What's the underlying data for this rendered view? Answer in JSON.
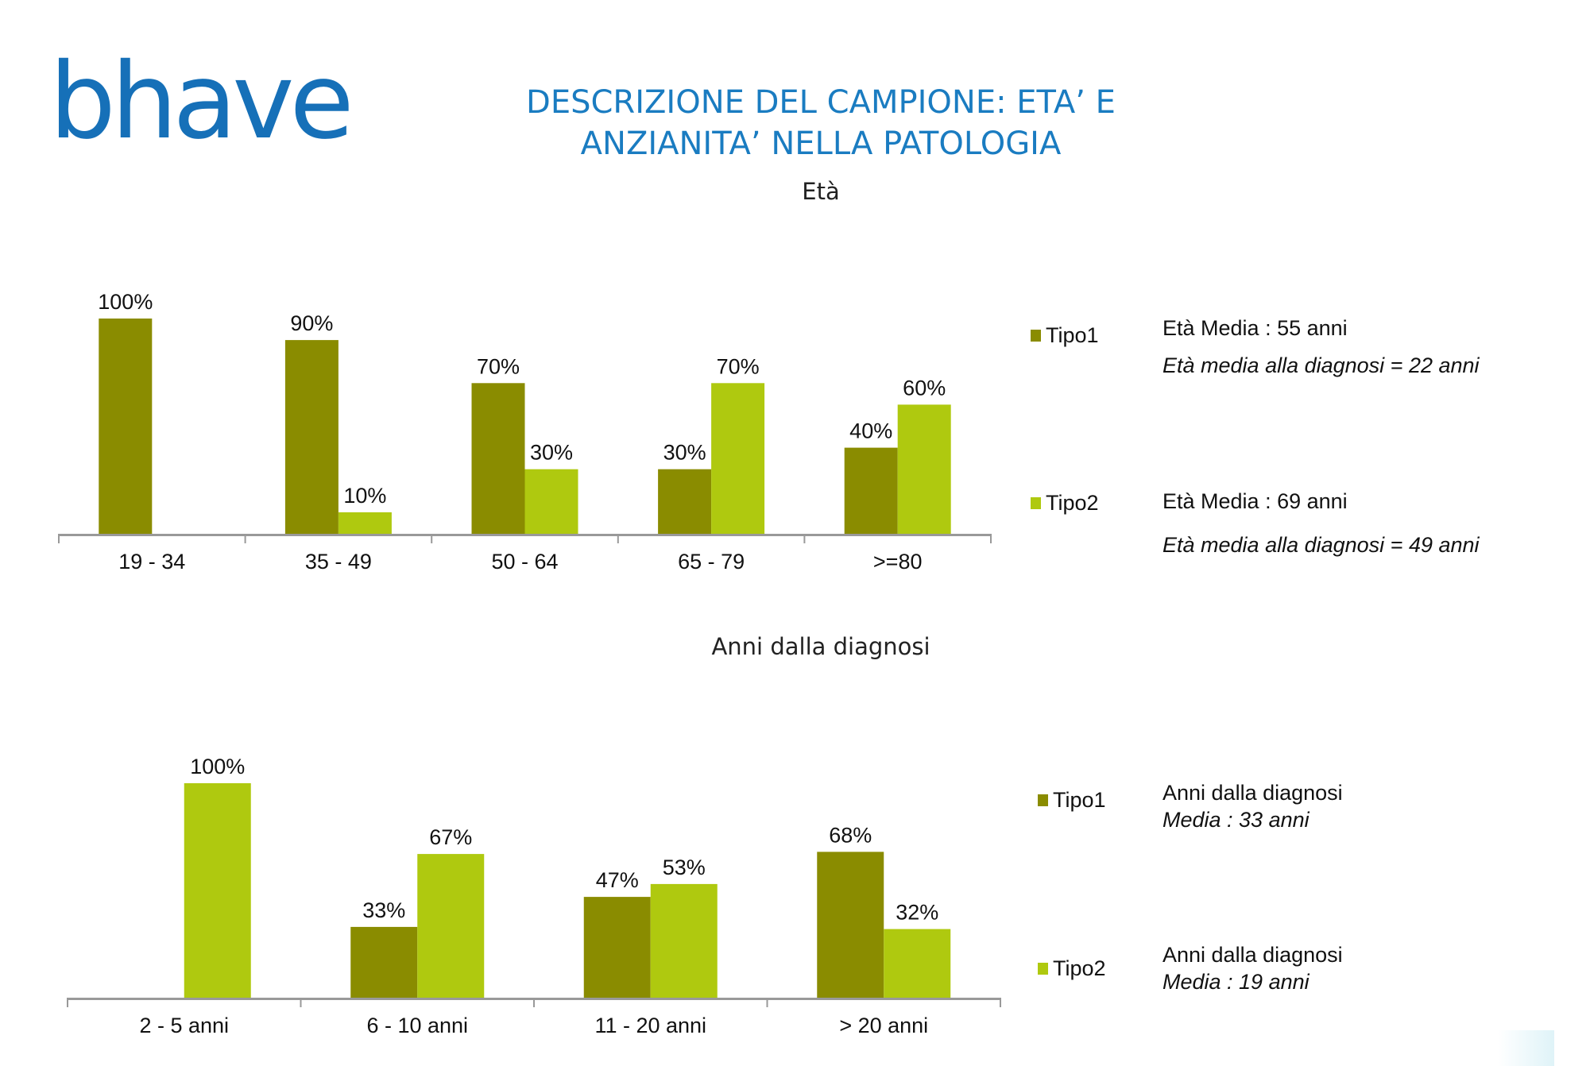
{
  "logo": "bhave",
  "title_line1": "DESCRIZIONE DEL CAMPIONE: ETA’ E",
  "title_line2": "ANZIANITA’ NELLA PATOLOGIA",
  "colors": {
    "tipo1": "#8a8c00",
    "tipo2": "#afc90f",
    "title": "#1a7cc1"
  },
  "chart_data": [
    {
      "type": "bar",
      "title": "Età",
      "categories": [
        "19 - 34",
        "35 - 49",
        "50 - 64",
        "65 - 79",
        ">=80"
      ],
      "series": [
        {
          "name": "Tipo1",
          "values": [
            100,
            90,
            70,
            30,
            40
          ]
        },
        {
          "name": "Tipo2",
          "values": [
            0,
            10,
            30,
            70,
            60
          ]
        }
      ],
      "value_labels": [
        [
          "100%",
          "90%",
          "70%",
          "30%",
          "40%"
        ],
        [
          "",
          "10%",
          "30%",
          "70%",
          "60%"
        ]
      ],
      "ylim": [
        0,
        100
      ],
      "legend": "right",
      "notes": {
        "tipo1": [
          "Età Media :  55 anni",
          "Età media alla diagnosi = 22 anni"
        ],
        "tipo2": [
          "Età Media :  69 anni",
          "Età media alla diagnosi = 49 anni"
        ]
      }
    },
    {
      "type": "bar",
      "title": "Anni dalla diagnosi",
      "categories": [
        "2 - 5 anni",
        "6 - 10 anni",
        "11 - 20 anni",
        "> 20 anni"
      ],
      "series": [
        {
          "name": "Tipo1",
          "values": [
            0,
            33,
            47,
            68
          ]
        },
        {
          "name": "Tipo2",
          "values": [
            100,
            67,
            53,
            32
          ]
        }
      ],
      "value_labels": [
        [
          "",
          "33%",
          "47%",
          "68%"
        ],
        [
          "100%",
          "67%",
          "53%",
          "32%"
        ]
      ],
      "ylim": [
        0,
        100
      ],
      "legend": "right",
      "notes": {
        "tipo1": [
          "Anni dalla diagnosi",
          "Media : 33 anni"
        ],
        "tipo2": [
          "Anni dalla diagnosi",
          "Media : 19 anni"
        ]
      }
    }
  ]
}
